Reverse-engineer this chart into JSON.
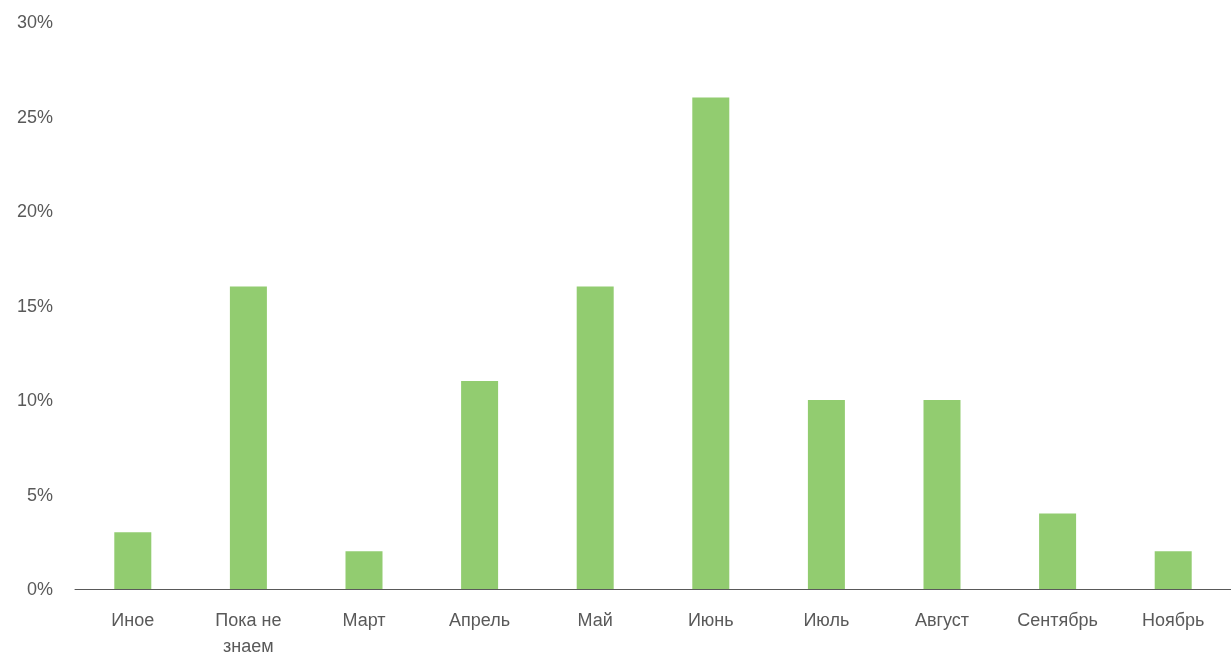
{
  "chart_data": {
    "type": "bar",
    "categories": [
      "Иное",
      "Пока не знаем",
      "Март",
      "Апрель",
      "Май",
      "Июнь",
      "Июль",
      "Август",
      "Сентябрь",
      "Ноябрь"
    ],
    "values": [
      3,
      16,
      2,
      11,
      16,
      26,
      10,
      10,
      4,
      2
    ],
    "color": "#92cc70",
    "ylim": [
      0,
      30
    ],
    "yticks": [
      {
        "value": 0,
        "label": "0%"
      },
      {
        "value": 5,
        "label": "5%"
      },
      {
        "value": 10,
        "label": "10%"
      },
      {
        "value": 15,
        "label": "15%"
      },
      {
        "value": 20,
        "label": "20%"
      },
      {
        "value": 25,
        "label": "25%"
      },
      {
        "value": 30,
        "label": "30%"
      }
    ],
    "grid": false
  }
}
